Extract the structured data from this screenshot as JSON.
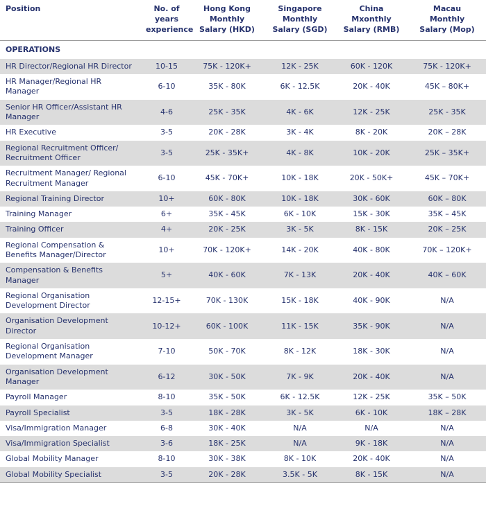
{
  "colors": {
    "text": "#27336e",
    "row_shade": "#dcdcdc",
    "border": "#9b9b9b"
  },
  "table": {
    "section": "OPERATIONS",
    "columns": [
      {
        "label": "Position"
      },
      {
        "label": "No. of\nyears\nexperience"
      },
      {
        "label": "Hong Kong\nMonthly\nSalary (HKD)"
      },
      {
        "label": "Singapore\nMonthly\nSalary (SGD)"
      },
      {
        "label": "China\nMxonthly\nSalary (RMB)"
      },
      {
        "label": "Macau\nMonthly\nSalary (Mop)"
      }
    ],
    "rows": [
      {
        "position": "HR Director/Regional HR Director",
        "years": "10-15",
        "hkd": "75K - 120K+",
        "sgd": "12K - 25K",
        "rmb": "60K - 120K",
        "mop": "75K - 120K+"
      },
      {
        "position": "HR Manager/Regional HR Manager",
        "years": "6-10",
        "hkd": "35K - 80K",
        "sgd": "6K - 12.5K",
        "rmb": "20K - 40K",
        "mop": "45K – 80K+"
      },
      {
        "position": "Senior HR Officer/Assistant HR Manager",
        "years": "4-6",
        "hkd": "25K - 35K",
        "sgd": "4K - 6K",
        "rmb": "12K - 25K",
        "mop": "25K - 35K"
      },
      {
        "position": "HR Executive",
        "years": "3-5",
        "hkd": "20K - 28K",
        "sgd": "3K - 4K",
        "rmb": "8K - 20K",
        "mop": "20K – 28K"
      },
      {
        "position": "Regional Recruitment Officer/ Recruitment Officer",
        "years": "3-5",
        "hkd": "25K - 35K+",
        "sgd": "4K - 8K",
        "rmb": "10K - 20K",
        "mop": "25K – 35K+"
      },
      {
        "position": "Recruitment Manager/ Regional Recruitment Manager",
        "years": "6-10",
        "hkd": "45K - 70K+",
        "sgd": "10K - 18K",
        "rmb": "20K - 50K+",
        "mop": "45K – 70K+"
      },
      {
        "position": "Regional Training Director",
        "years": "10+",
        "hkd": "60K - 80K",
        "sgd": "10K - 18K",
        "rmb": "30K - 60K",
        "mop": "60K – 80K"
      },
      {
        "position": "Training Manager",
        "years": "6+",
        "hkd": "35K - 45K",
        "sgd": "6K - 10K",
        "rmb": "15K - 30K",
        "mop": "35K – 45K"
      },
      {
        "position": "Training Officer",
        "years": "4+",
        "hkd": "20K - 25K",
        "sgd": "3K - 5K",
        "rmb": "8K - 15K",
        "mop": "20K – 25K"
      },
      {
        "position": "Regional Compensation & Benefits Manager/Director",
        "years": "10+",
        "hkd": "70K - 120K+",
        "sgd": "14K - 20K",
        "rmb": "40K - 80K",
        "mop": "70K – 120K+"
      },
      {
        "position": "Compensation & Benefits Manager",
        "years": "5+",
        "hkd": "40K - 60K",
        "sgd": "7K - 13K",
        "rmb": "20K - 40K",
        "mop": "40K – 60K"
      },
      {
        "position": "Regional Organisation Development Director",
        "years": "12-15+",
        "hkd": "70K - 130K",
        "sgd": "15K - 18K",
        "rmb": "40K - 90K",
        "mop": "N/A"
      },
      {
        "position": "Organisation Development Director",
        "years": "10-12+",
        "hkd": "60K - 100K",
        "sgd": "11K - 15K",
        "rmb": "35K - 90K",
        "mop": "N/A"
      },
      {
        "position": "Regional Organisation Development Manager",
        "years": "7-10",
        "hkd": "50K - 70K",
        "sgd": "8K - 12K",
        "rmb": "18K - 30K",
        "mop": "N/A"
      },
      {
        "position": "Organisation Development Manager",
        "years": "6-12",
        "hkd": "30K - 50K",
        "sgd": "7K - 9K",
        "rmb": "20K - 40K",
        "mop": "N/A"
      },
      {
        "position": "Payroll Manager",
        "years": "8-10",
        "hkd": "35K - 50K",
        "sgd": "6K - 12.5K",
        "rmb": "12K - 25K",
        "mop": "35K – 50K"
      },
      {
        "position": "Payroll Specialist",
        "years": "3-5",
        "hkd": "18K - 28K",
        "sgd": "3K - 5K",
        "rmb": "6K - 10K",
        "mop": "18K – 28K"
      },
      {
        "position": "Visa/Immigration Manager",
        "years": "6-8",
        "hkd": "30K - 40K",
        "sgd": "N/A",
        "rmb": "N/A",
        "mop": "N/A"
      },
      {
        "position": "Visa/Immigration Specialist",
        "years": "3-6",
        "hkd": "18K - 25K",
        "sgd": "N/A",
        "rmb": "9K - 18K",
        "mop": "N/A"
      },
      {
        "position": "Global Mobility Manager",
        "years": "8-10",
        "hkd": "30K - 38K",
        "sgd": "8K - 10K",
        "rmb": "20K - 40K",
        "mop": "N/A"
      },
      {
        "position": "Global Mobility Specialist",
        "years": "3-5",
        "hkd": "20K - 28K",
        "sgd": "3.5K - 5K",
        "rmb": "8K - 15K",
        "mop": "N/A"
      }
    ]
  }
}
